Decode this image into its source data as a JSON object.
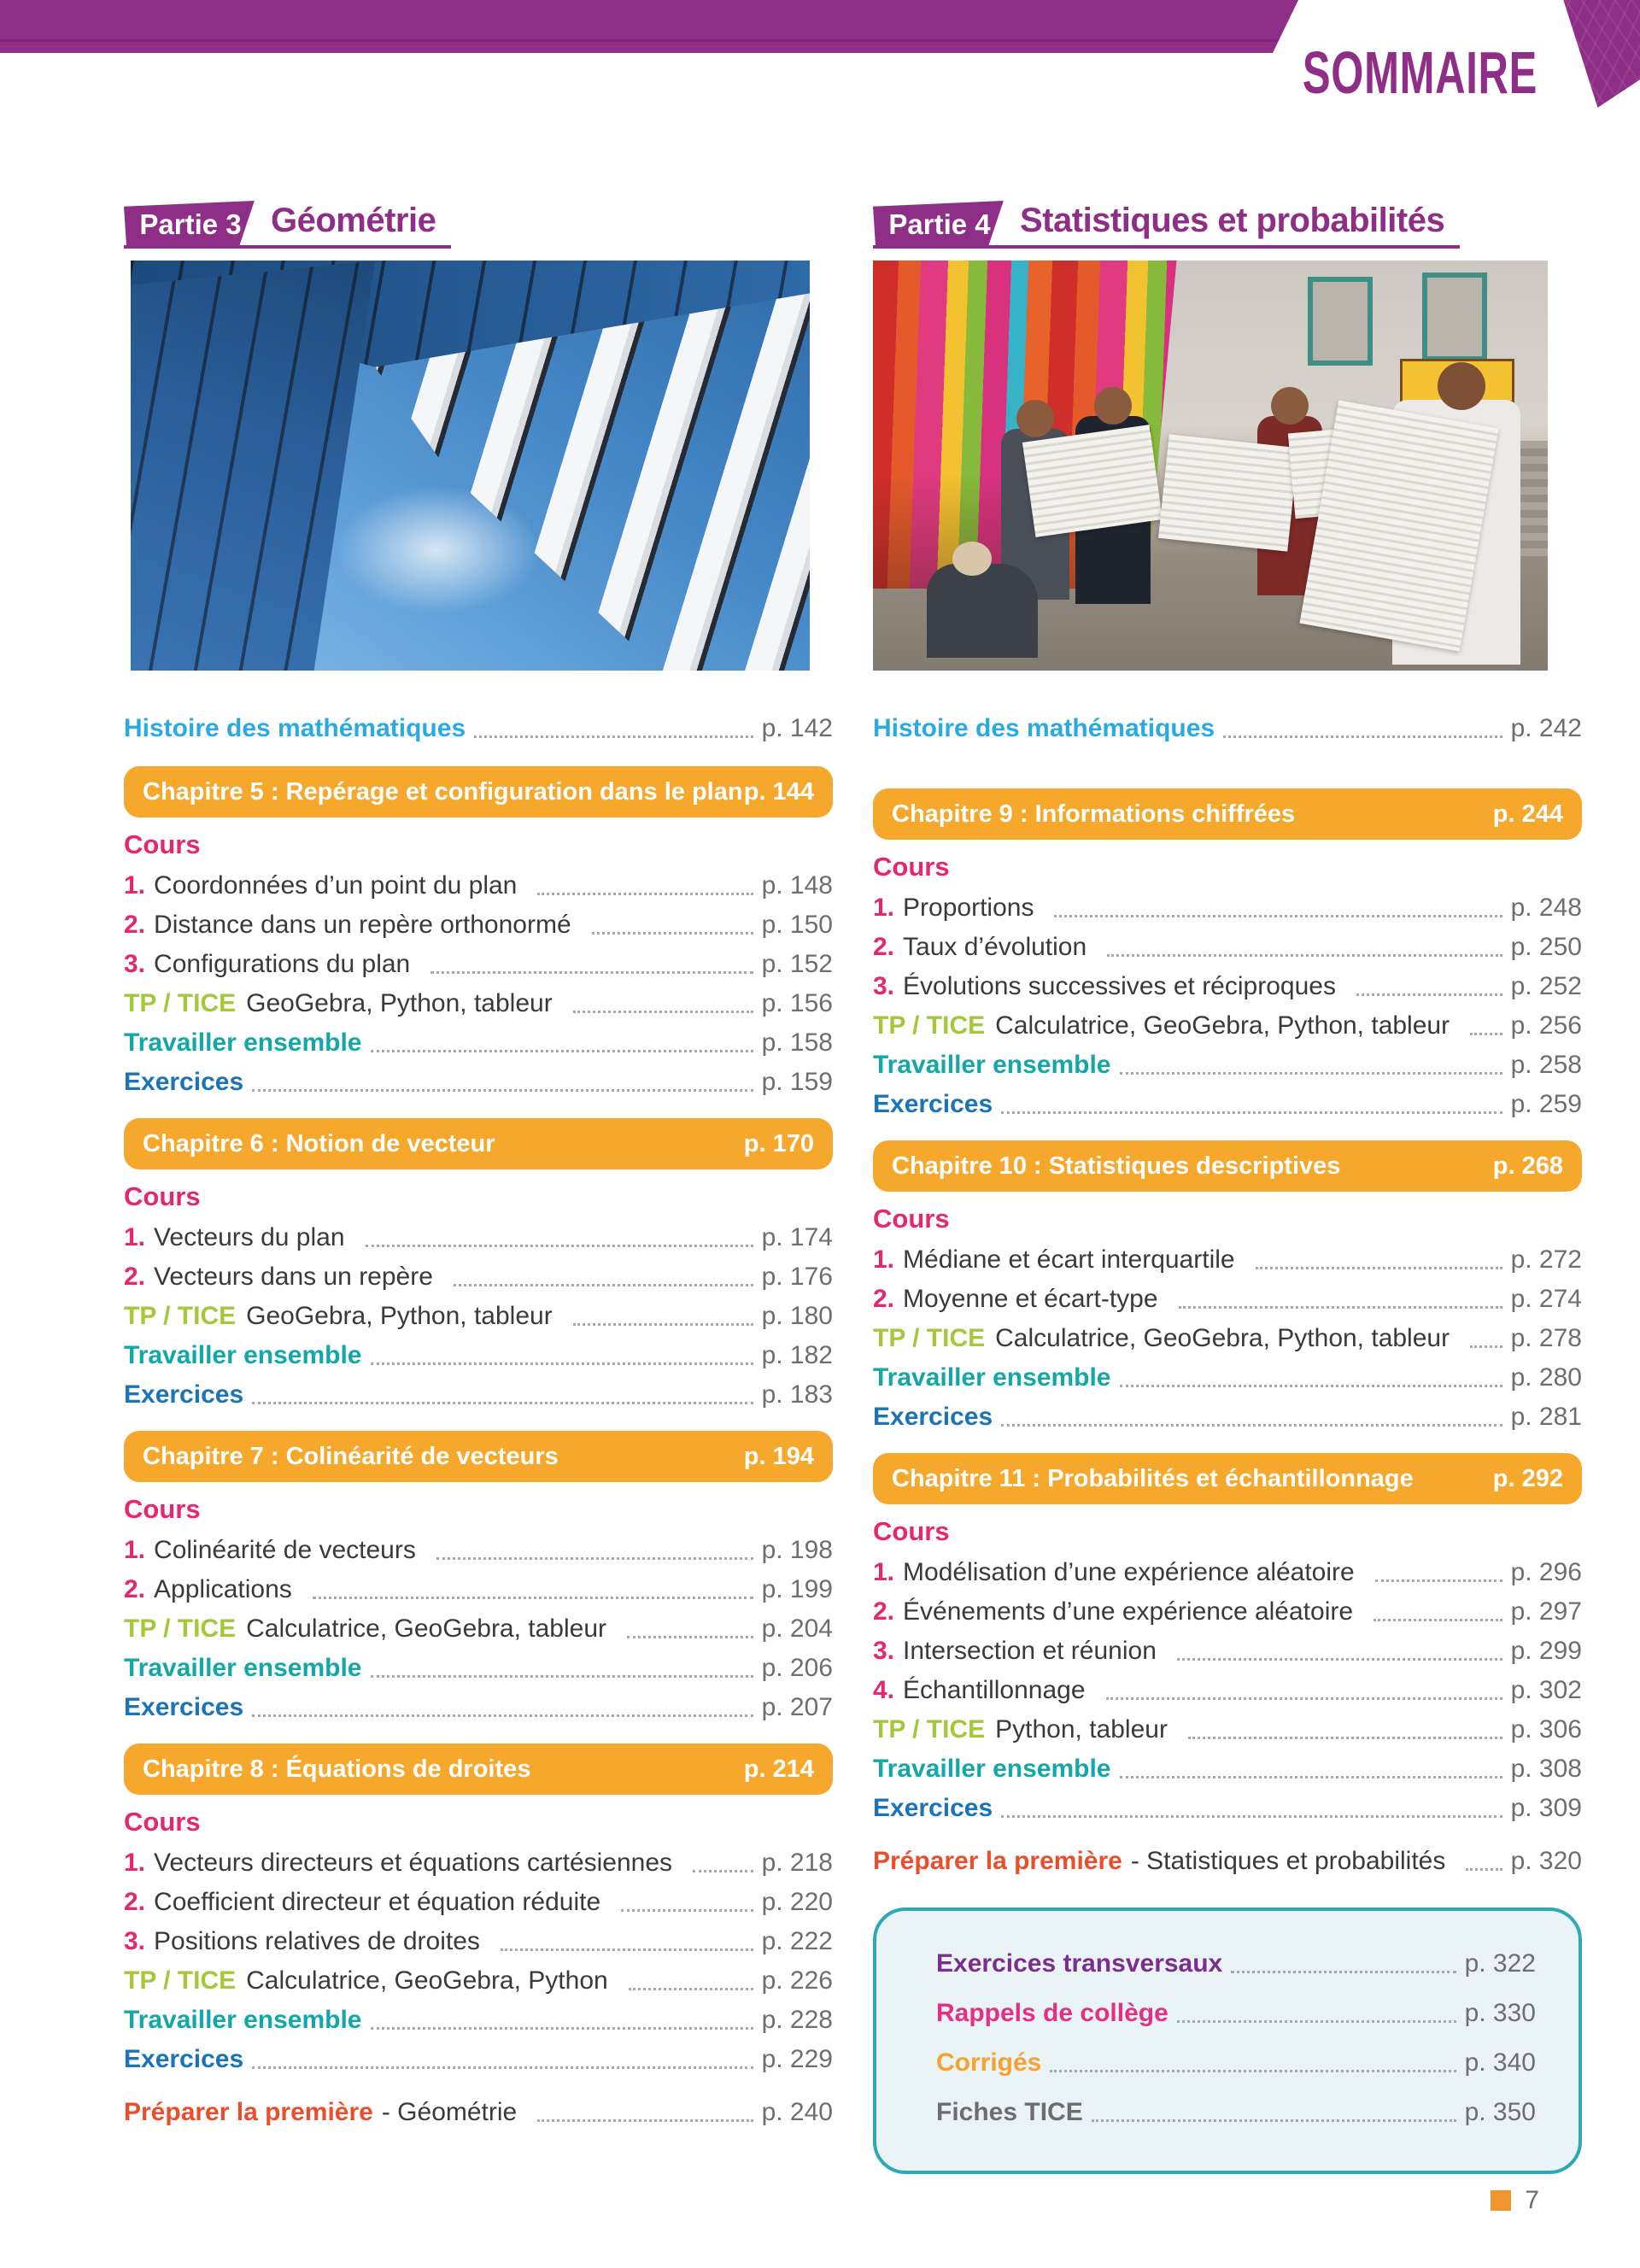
{
  "page": {
    "title": "SOMMAIRE",
    "number": "7"
  },
  "labels": {
    "histoire": "Histoire des mathématiques",
    "cours": "Cours",
    "tp": "TP / TICE",
    "travailler": "Travailler ensemble",
    "exercices": "Exercices",
    "preparer": "Préparer la première"
  },
  "partie3": {
    "badge": "Partie 3",
    "title": "Géométrie",
    "histoire_page": "p. 142",
    "chapters": [
      {
        "title": "Chapitre 5 : Repérage et configuration dans le plan",
        "page": "p. 144",
        "items": [
          {
            "num": "1.",
            "text": "Coordonnées d’un point du plan",
            "page": "p. 148"
          },
          {
            "num": "2.",
            "text": "Distance dans un repère orthonormé",
            "page": "p. 150"
          },
          {
            "num": "3.",
            "text": "Configurations du plan",
            "page": "p. 152"
          }
        ],
        "tp_text": "GeoGebra, Python, tableur",
        "tp_page": "p. 156",
        "travailler_page": "p. 158",
        "exercices_page": "p. 159"
      },
      {
        "title": "Chapitre 6 : Notion de vecteur",
        "page": "p. 170",
        "items": [
          {
            "num": "1.",
            "text": "Vecteurs du plan",
            "page": "p. 174"
          },
          {
            "num": "2.",
            "text": "Vecteurs dans un repère",
            "page": "p. 176"
          }
        ],
        "tp_text": "GeoGebra, Python, tableur",
        "tp_page": "p. 180",
        "travailler_page": "p. 182",
        "exercices_page": "p. 183"
      },
      {
        "title": "Chapitre 7 : Colinéarité de vecteurs",
        "page": "p. 194",
        "items": [
          {
            "num": "1.",
            "text": "Colinéarité de vecteurs",
            "page": "p. 198"
          },
          {
            "num": "2.",
            "text": "Applications",
            "page": "p. 199"
          }
        ],
        "tp_text": "Calculatrice, GeoGebra, tableur",
        "tp_page": "p. 204",
        "travailler_page": "p. 206",
        "exercices_page": "p. 207"
      },
      {
        "title": "Chapitre 8 : Équations de droites",
        "page": "p. 214",
        "items": [
          {
            "num": "1.",
            "text": "Vecteurs directeurs et équations cartésiennes",
            "page": "p. 218"
          },
          {
            "num": "2.",
            "text": "Coefficient directeur et équation réduite",
            "page": "p. 220"
          },
          {
            "num": "3.",
            "text": "Positions relatives de droites",
            "page": "p. 222"
          }
        ],
        "tp_text": "Calculatrice, GeoGebra, Python",
        "tp_page": "p. 226",
        "travailler_page": "p. 228",
        "exercices_page": "p. 229"
      }
    ],
    "preparer_suffix": "- Géométrie",
    "preparer_page": "p. 240"
  },
  "partie4": {
    "badge": "Partie 4",
    "title": "Statistiques et probabilités",
    "histoire_page": "p. 242",
    "chapters": [
      {
        "title": "Chapitre 9 : Informations chiffrées",
        "page": "p. 244",
        "items": [
          {
            "num": "1.",
            "text": "Proportions",
            "page": "p. 248"
          },
          {
            "num": "2.",
            "text": "Taux d’évolution",
            "page": "p. 250"
          },
          {
            "num": "3.",
            "text": "Évolutions successives et réciproques",
            "page": "p. 252"
          }
        ],
        "tp_text": "Calculatrice, GeoGebra, Python, tableur",
        "tp_page": "p. 256",
        "travailler_page": "p. 258",
        "exercices_page": "p. 259"
      },
      {
        "title": "Chapitre 10 : Statistiques descriptives",
        "page": "p. 268",
        "items": [
          {
            "num": "1.",
            "text": "Médiane et écart interquartile",
            "page": "p. 272"
          },
          {
            "num": "2.",
            "text": "Moyenne et écart-type",
            "page": "p. 274"
          }
        ],
        "tp_text": "Calculatrice, GeoGebra, Python, tableur",
        "tp_page": "p. 278",
        "travailler_page": "p. 280",
        "exercices_page": "p. 281"
      },
      {
        "title": "Chapitre 11 : Probabilités et échantillonnage",
        "page": "p. 292",
        "items": [
          {
            "num": "1.",
            "text": "Modélisation d’une expérience aléatoire",
            "page": "p. 296"
          },
          {
            "num": "2.",
            "text": "Événements d’une expérience aléatoire",
            "page": "p. 297"
          },
          {
            "num": "3.",
            "text": "Intersection et réunion",
            "page": "p. 299"
          },
          {
            "num": "4.",
            "text": "Échantillonnage",
            "page": "p. 302"
          }
        ],
        "tp_text": "Python, tableur",
        "tp_page": "p. 306",
        "travailler_page": "p. 308",
        "exercices_page": "p. 309"
      }
    ],
    "preparer_suffix": "- Statistiques et probabilités",
    "preparer_page": "p. 320"
  },
  "annexes": {
    "items": [
      {
        "label": "Exercices transversaux",
        "page": "p. 322"
      },
      {
        "label": "Rappels de collège",
        "page": "p. 330"
      },
      {
        "label": "Corrigés",
        "page": "p. 340"
      },
      {
        "label": "Fiches TICE",
        "page": "p. 350"
      }
    ]
  }
}
